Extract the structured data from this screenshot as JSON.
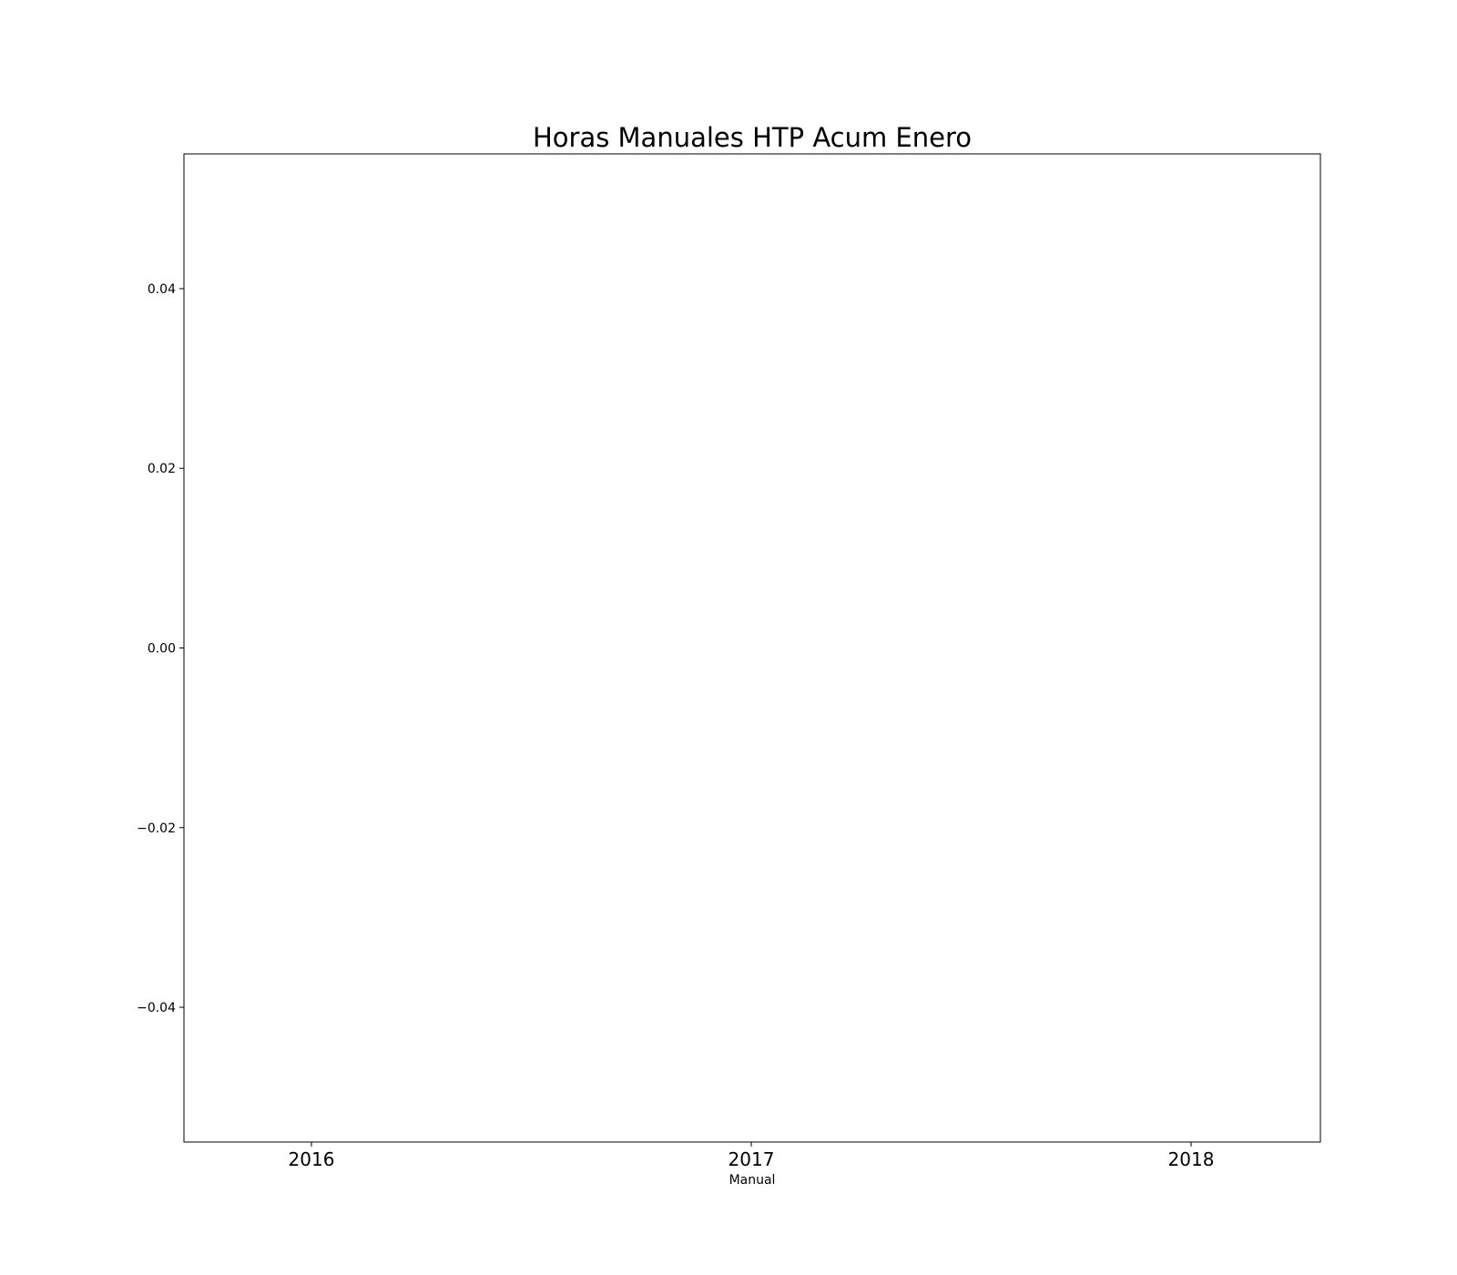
{
  "chart_data": {
    "type": "bar",
    "title": "Horas Manuales HTP Acum Enero",
    "xlabel": "Manual",
    "ylabel": "",
    "categories": [
      "2016",
      "2017",
      "2018"
    ],
    "series": [],
    "ylim": [
      -0.055,
      0.055
    ],
    "yticks": [
      {
        "value": 0.04,
        "label": "0.04"
      },
      {
        "value": 0.02,
        "label": "0.02"
      },
      {
        "value": 0.0,
        "label": "0.00"
      },
      {
        "value": -0.02,
        "label": "−0.02"
      },
      {
        "value": -0.04,
        "label": "−0.04"
      }
    ],
    "grid": false,
    "legend": "none"
  }
}
